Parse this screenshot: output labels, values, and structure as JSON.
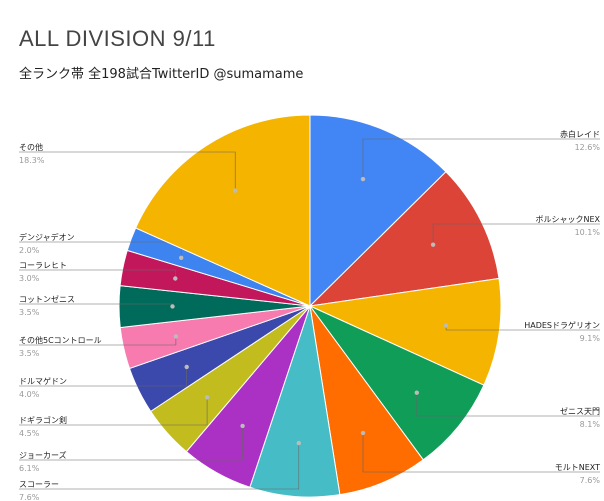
{
  "chart_data": {
    "type": "pie",
    "title": "ALL DIVISION 9/11",
    "subtitle": "全ランク帯 全198試合TwitterID @sumamame",
    "slices": [
      {
        "label": "赤白レイド",
        "value": 12.6,
        "pct_text": "12.6%",
        "color": "#4285F4",
        "side": "right"
      },
      {
        "label": "ボルシャックNEX",
        "value": 10.1,
        "pct_text": "10.1%",
        "color": "#DB4437",
        "side": "right"
      },
      {
        "label": "HADESドラゲリオン",
        "value": 9.1,
        "pct_text": "9.1%",
        "color": "#F4B400",
        "side": "right"
      },
      {
        "label": "ゼニス天門",
        "value": 8.1,
        "pct_text": "8.1%",
        "color": "#0F9D58",
        "side": "right"
      },
      {
        "label": "モルトNEXT",
        "value": 7.6,
        "pct_text": "7.6%",
        "color": "#FF6D01",
        "side": "right"
      },
      {
        "label": "スコーラー",
        "value": 7.6,
        "pct_text": "7.6%",
        "color": "#46BDC6",
        "side": "left"
      },
      {
        "label": "ジョーカーズ",
        "value": 6.1,
        "pct_text": "6.1%",
        "color": "#AB30C4",
        "side": "left"
      },
      {
        "label": "ドギラゴン剣",
        "value": 4.5,
        "pct_text": "4.5%",
        "color": "#C2BC1F",
        "side": "left"
      },
      {
        "label": "ドルマゲドン",
        "value": 4.0,
        "pct_text": "4.0%",
        "color": "#3B48AC",
        "side": "left"
      },
      {
        "label": "その他5Cコントロール",
        "value": 3.5,
        "pct_text": "3.5%",
        "color": "#F77BAF",
        "side": "left"
      },
      {
        "label": "コットンゼニス",
        "value": 3.5,
        "pct_text": "3.5%",
        "color": "#006B5A",
        "side": "left"
      },
      {
        "label": "コーラレヒト",
        "value": 3.0,
        "pct_text": "3.0%",
        "color": "#C2185B",
        "side": "left"
      },
      {
        "label": "デンジャデオン",
        "value": 2.0,
        "pct_text": "2.0%",
        "color": "#3D84F0",
        "side": "left"
      },
      {
        "label": "その他",
        "value": 18.3,
        "pct_text": "18.3%",
        "color": "#F4B400",
        "side": "left"
      }
    ]
  }
}
